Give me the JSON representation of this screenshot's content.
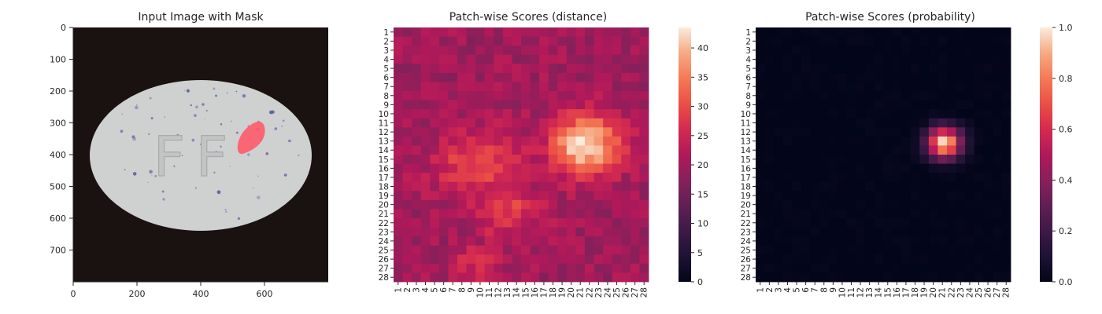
{
  "chart_data": [
    {
      "type": "image",
      "title": "Input Image with Mask",
      "xlim": [
        0,
        800
      ],
      "ylim": [
        800,
        0
      ],
      "xticks": [
        0,
        200,
        400,
        600
      ],
      "yticks": [
        0,
        100,
        200,
        300,
        400,
        500,
        600,
        700
      ],
      "image_content": {
        "background": "#1a1210",
        "object": "white oval tablet",
        "object_color": "#cfd0d0",
        "embossed_text": "FF",
        "speckle_color": "#5a55a0",
        "mask_color": "#ff5a6a",
        "tablet_bounds": {
          "x": [
            60,
            760
          ],
          "y": [
            165,
            640
          ]
        },
        "mask_region": {
          "x": [
            520,
            600
          ],
          "y": [
            290,
            410
          ]
        }
      }
    },
    {
      "type": "heatmap",
      "title": "Patch-wise Scores (distance)",
      "xticklabels": [
        "1",
        "2",
        "3",
        "4",
        "5",
        "6",
        "7",
        "8",
        "9",
        "10",
        "11",
        "12",
        "13",
        "14",
        "15",
        "16",
        "17",
        "18",
        "19",
        "20",
        "21",
        "22",
        "23",
        "24",
        "25",
        "26",
        "27",
        "28"
      ],
      "yticklabels": [
        "1",
        "2",
        "3",
        "4",
        "5",
        "6",
        "7",
        "8",
        "9",
        "10",
        "11",
        "12",
        "13",
        "14",
        "15",
        "16",
        "17",
        "18",
        "19",
        "20",
        "21",
        "22",
        "23",
        "24",
        "25",
        "26",
        "27",
        "28"
      ],
      "colormap": "rocket",
      "vmin": 0,
      "vmax": 43.5,
      "colorbar_ticks": [
        0,
        5,
        10,
        15,
        20,
        25,
        30,
        35,
        40
      ],
      "hotspots": [
        {
          "row": 13.5,
          "col": 21.5,
          "peak": 43.5,
          "sigma_r": 2.3,
          "sigma_c": 2.6
        },
        {
          "row": 15.5,
          "col": 10.0,
          "peak": 30.0,
          "sigma_r": 2.5,
          "sigma_c": 3.5
        },
        {
          "row": 20.5,
          "col": 13.0,
          "peak": 29.0,
          "sigma_r": 2.2,
          "sigma_c": 2.5
        },
        {
          "row": 26.5,
          "col": 9.5,
          "peak": 26.0,
          "sigma_r": 1.5,
          "sigma_c": 2.0
        }
      ],
      "baseline": 20.0
    },
    {
      "type": "heatmap",
      "title": "Patch-wise Scores (probability)",
      "xticklabels": [
        "1",
        "2",
        "3",
        "4",
        "5",
        "6",
        "7",
        "8",
        "9",
        "10",
        "11",
        "12",
        "13",
        "14",
        "15",
        "16",
        "17",
        "18",
        "19",
        "20",
        "21",
        "22",
        "23",
        "24",
        "25",
        "26",
        "27",
        "28"
      ],
      "yticklabels": [
        "1",
        "2",
        "3",
        "4",
        "5",
        "6",
        "7",
        "8",
        "9",
        "10",
        "11",
        "12",
        "13",
        "14",
        "15",
        "16",
        "17",
        "18",
        "19",
        "20",
        "21",
        "22",
        "23",
        "24",
        "25",
        "26",
        "27",
        "28"
      ],
      "colormap": "rocket",
      "vmin": 0.0,
      "vmax": 1.0,
      "colorbar_ticks": [
        0.0,
        0.2,
        0.4,
        0.6,
        0.8,
        1.0
      ],
      "colorbar_ticklabels": [
        "0.0",
        "0.2",
        "0.4",
        "0.6",
        "0.8",
        "1.0"
      ],
      "hotspots": [
        {
          "row": 13.2,
          "col": 21.2,
          "peak": 1.0,
          "sigma_r": 1.2,
          "sigma_c": 1.3
        }
      ],
      "baseline": 0.0
    }
  ]
}
